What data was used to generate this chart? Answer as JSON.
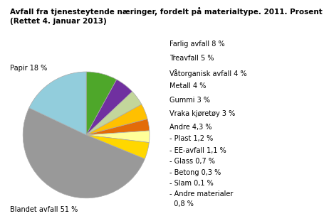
{
  "title": "Avfall fra tjenesteytende næringer, fordelt på materialtype. 2011. Prosent\n(Rettet 4. januar 2013)",
  "ordered_values": [
    8.0,
    5.0,
    4.0,
    4.0,
    3.0,
    3.0,
    4.3,
    51.0,
    18.0
  ],
  "ordered_colors": [
    "#4EA72A",
    "#7030A0",
    "#C3D69B",
    "#FFC000",
    "#E36C09",
    "#FFFF99",
    "#FFD700",
    "#999999",
    "#92CDDC"
  ],
  "right_labels": [
    "Farlig avfall 8 %",
    "Treavfall 5 %",
    "Våtorganisk avfall 4 %",
    "Metall 4 %",
    "Gummi 3 %",
    "Vraka kjøretøy 3 %",
    "Andre 4,3 %",
    "- Plast 1,2 %",
    "- EE-avfall 1,1 %",
    "- Glass 0,7 %",
    "- Betong 0,3 %",
    "- Slam 0,1 %",
    "- Andre materialer",
    "  0,8 %"
  ],
  "label_papir": "Papir 18 %",
  "label_blandet": "Blandet avfall 51 %",
  "background_color": "#FFFFFF",
  "title_fontsize": 7.5,
  "label_fontsize": 7.0,
  "edge_color": "#AAAAAA",
  "edge_linewidth": 0.5
}
